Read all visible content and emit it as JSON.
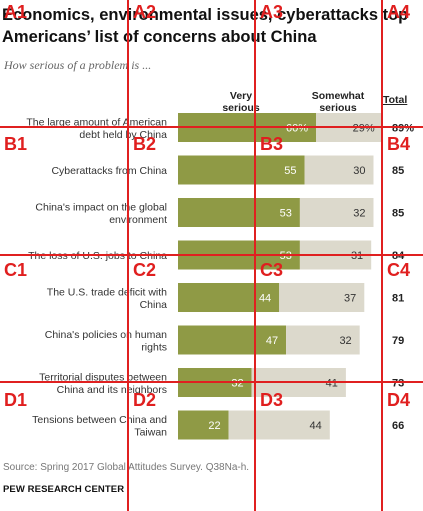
{
  "title": "Economics, environmental issues, cyberattacks top Americans’ list of concerns about China",
  "subtitle": "How serious of a problem is ...",
  "source": "Source: Spring 2017 Global Attitudes Survey. Q38Na-h.",
  "org": "PEW RESEARCH CENTER",
  "colors": {
    "very": "#8f9a45",
    "somewhat": "#dcd9cc",
    "label_text": "#333333",
    "value_text": "#ffffff",
    "somewhat_text": "#333333",
    "grid": "#e02020"
  },
  "chart_data": {
    "type": "bar",
    "stacked": true,
    "orientation": "horizontal",
    "title": "Economics, environmental issues, cyberattacks top Americans’ list of concerns about China",
    "column_headers": {
      "very": "Very serious",
      "somewhat": "Somewhat serious",
      "total": "Total"
    },
    "categories": [
      "The large amount of American debt held by China",
      "Cyberattacks from China",
      "China's impact on the global environment",
      "The loss of U.S. jobs to China",
      "The U.S. trade deficit with China",
      "China's policies on human rights",
      "Territorial disputes between China and its neighbors",
      "Tensions between China and Taiwan"
    ],
    "series": [
      {
        "name": "Very serious",
        "values": [
          60,
          55,
          53,
          53,
          44,
          47,
          32,
          22
        ],
        "value_labels": [
          "60%",
          "55",
          "53",
          "53",
          "44",
          "47",
          "32",
          "22"
        ]
      },
      {
        "name": "Somewhat serious",
        "values": [
          29,
          30,
          32,
          31,
          37,
          32,
          41,
          44
        ],
        "value_labels": [
          "29%",
          "30",
          "32",
          "31",
          "37",
          "32",
          "41",
          "44"
        ]
      }
    ],
    "totals": [
      89,
      85,
      85,
      84,
      81,
      79,
      73,
      66
    ],
    "total_labels": [
      "89%",
      "85",
      "85",
      "84",
      "81",
      "79",
      "73",
      "66"
    ],
    "xlim": [
      0,
      100
    ],
    "grid_cells": [
      "A1",
      "A2",
      "A3",
      "A4",
      "B1",
      "B2",
      "B3",
      "B4",
      "C1",
      "C2",
      "C3",
      "C4",
      "D1",
      "D2",
      "D3",
      "D4"
    ]
  }
}
